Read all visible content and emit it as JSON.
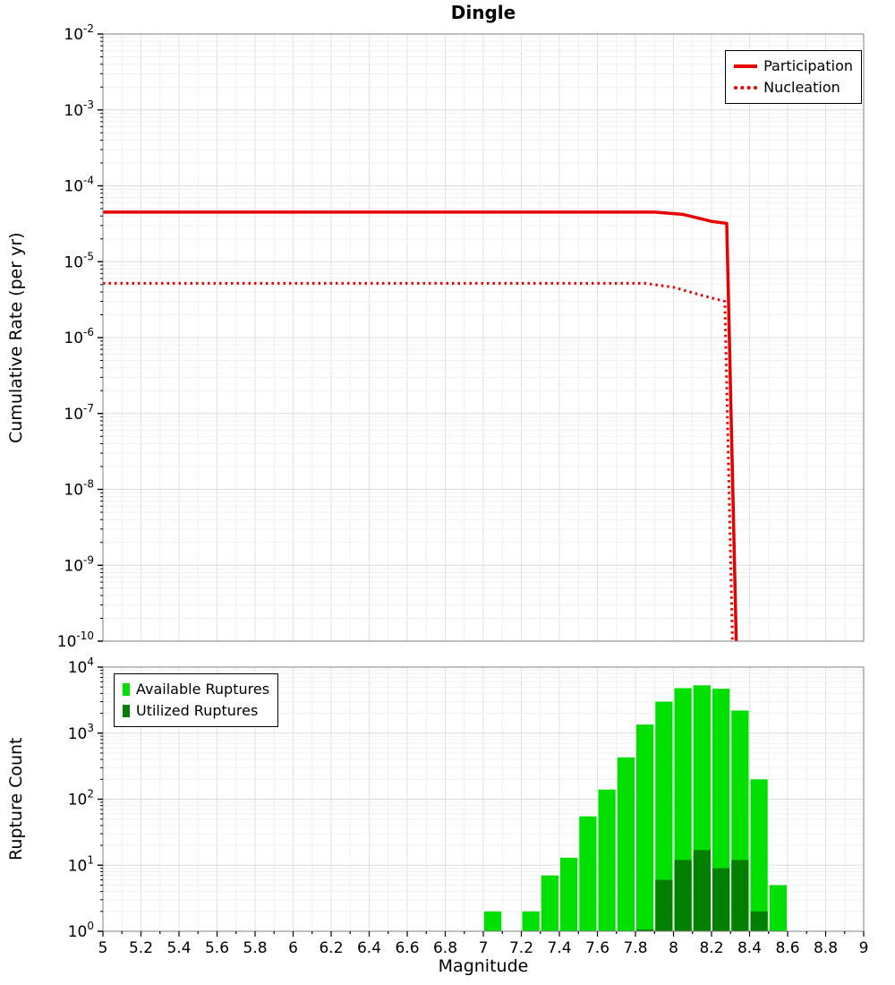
{
  "figure": {
    "title": "Dingle"
  },
  "chart_data": [
    {
      "type": "line",
      "title": "Dingle",
      "ylabel": "Cumulative Rate (per yr)",
      "x_range": [
        5,
        9
      ],
      "y_log_range": [
        -10,
        -2
      ],
      "y_tick_exponents": [
        -2,
        -3,
        -4,
        -5,
        -6,
        -7,
        -8,
        -9,
        -10
      ],
      "grid": true,
      "legend_position": "top-right",
      "series": [
        {
          "name": "Participation",
          "color": "#e60000",
          "line_style": "solid",
          "points": [
            [
              5.0,
              4.5e-05
            ],
            [
              7.9,
              4.5e-05
            ],
            [
              8.05,
              4.2e-05
            ],
            [
              8.2,
              3.4e-05
            ],
            [
              8.28,
              3.2e-05
            ],
            [
              8.33,
              1e-10
            ]
          ]
        },
        {
          "name": "Nucleation",
          "color": "#e60000",
          "line_style": "dotted",
          "points": [
            [
              5.0,
              5.2e-06
            ],
            [
              7.85,
              5.2e-06
            ],
            [
              8.0,
              4.6e-06
            ],
            [
              8.15,
              3.6e-06
            ],
            [
              8.27,
              3e-06
            ],
            [
              8.31,
              1e-10
            ]
          ]
        }
      ]
    },
    {
      "type": "bar",
      "ylabel": "Rupture Count",
      "xlabel": "Magnitude",
      "x_range": [
        5,
        9
      ],
      "y_log_range": [
        0,
        4
      ],
      "bar_width": 0.1,
      "x_tick_step": 0.2,
      "x_tick_labels": [
        "5",
        "5.2",
        "5.4",
        "5.6",
        "5.8",
        "6",
        "6.2",
        "6.4",
        "6.6",
        "6.8",
        "7",
        "7.2",
        "7.4",
        "7.6",
        "7.8",
        "8",
        "8.2",
        "8.4",
        "8.6",
        "8.8",
        "9"
      ],
      "y_tick_exponents": [
        0,
        1,
        2,
        3,
        4
      ],
      "grid": true,
      "legend_position": "top-left",
      "series": [
        {
          "name": "Available Ruptures",
          "color": "#00e000",
          "bars": [
            [
              7.0,
              2
            ],
            [
              7.2,
              2
            ],
            [
              7.3,
              7
            ],
            [
              7.4,
              13
            ],
            [
              7.5,
              55
            ],
            [
              7.6,
              140
            ],
            [
              7.7,
              430
            ],
            [
              7.8,
              1350
            ],
            [
              7.9,
              3000
            ],
            [
              8.0,
              4800
            ],
            [
              8.1,
              5300
            ],
            [
              8.2,
              4700
            ],
            [
              8.3,
              2200
            ],
            [
              8.4,
              200
            ],
            [
              8.5,
              5
            ]
          ]
        },
        {
          "name": "Utilized Ruptures",
          "color": "#007f00",
          "bars": [
            [
              7.8,
              1
            ],
            [
              7.9,
              6
            ],
            [
              8.0,
              12
            ],
            [
              8.1,
              17
            ],
            [
              8.2,
              9
            ],
            [
              8.3,
              12
            ],
            [
              8.4,
              2
            ]
          ]
        }
      ]
    }
  ]
}
